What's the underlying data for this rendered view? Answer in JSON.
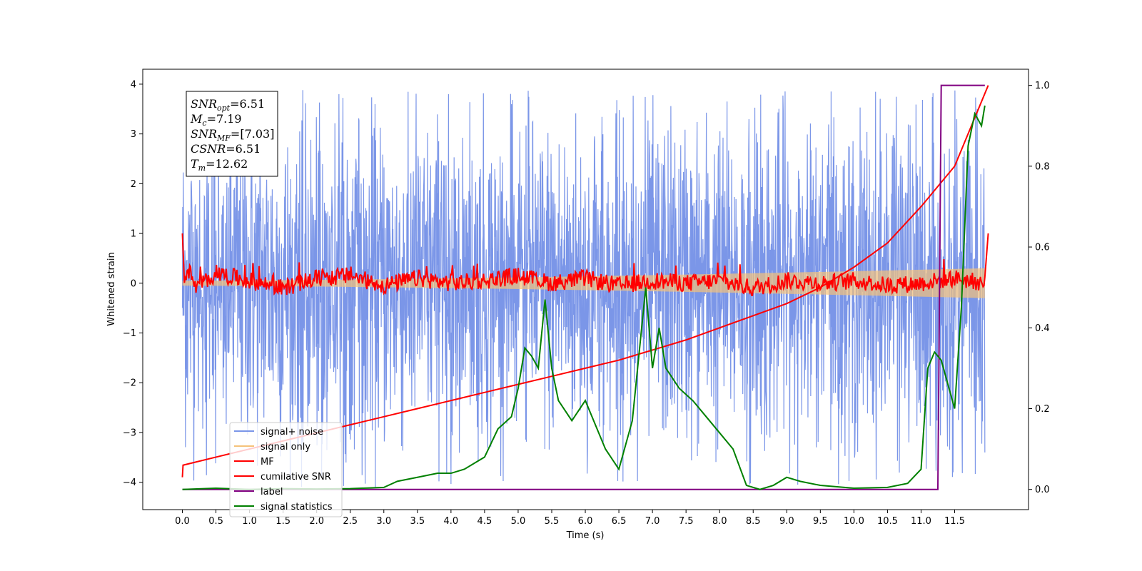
{
  "chart_data": {
    "type": "line",
    "xlabel": "Time (s)",
    "ylabel": "Whitened strain",
    "xlim": [
      -0.59,
      12.6
    ],
    "ylim": [
      -4.55,
      4.3
    ],
    "ylim_right": [
      -0.05,
      1.04
    ],
    "grid": false,
    "legend_position": "lower-left",
    "x_ticks": [
      "0.0",
      "0.5",
      "1.0",
      "1.5",
      "2.0",
      "2.5",
      "3.0",
      "3.5",
      "4.0",
      "4.5",
      "5.0",
      "5.5",
      "6.0",
      "6.5",
      "7.0",
      "7.5",
      "8.0",
      "8.5",
      "9.0",
      "9.5",
      "10.0",
      "10.5",
      "11.0",
      "11.5"
    ],
    "y_ticks": [
      "4",
      "3",
      "2",
      "1",
      "0",
      "−1",
      "−2",
      "−3",
      "−4"
    ],
    "y_ticks_right": [
      "1.0",
      "0.8",
      "0.6",
      "0.4",
      "0.2",
      "0.0"
    ],
    "annotation": {
      "lines": [
        {
          "sym": "SNR",
          "sub": "opt",
          "val": "=6.51"
        },
        {
          "sym": "M",
          "sub": "c",
          "val": "=7.19"
        },
        {
          "sym": "SNR",
          "sub": "MF",
          "val": "=[7.03]"
        },
        {
          "sym": "CSNR",
          "sub": "",
          "val": "=6.51"
        },
        {
          "sym": "T",
          "sub": "m",
          "val": "=12.62"
        }
      ]
    },
    "series": [
      {
        "name": "signal+ noise",
        "color": "#7b96e8",
        "axis": "left",
        "noise_amplitude": 1.6,
        "peak_range": [
          -4.1,
          3.9
        ]
      },
      {
        "name": "signal only",
        "color": "#f5c27a",
        "axis": "left",
        "envelope_start": 0.05,
        "envelope_end": 0.3
      },
      {
        "name": "MF",
        "color": "#ff0000",
        "axis": "left",
        "x": [
          0.0,
          0.03,
          0.1,
          0.2,
          0.5,
          1.0,
          1.5,
          2.0,
          2.5,
          3.0,
          3.5,
          4.0,
          4.5,
          5.0,
          5.5,
          6.0,
          6.5,
          7.0,
          7.5,
          8.0,
          8.5,
          9.0,
          9.5,
          10.0,
          10.5,
          11.0,
          11.5,
          11.95,
          12.0
        ],
        "y": [
          1.0,
          0.1,
          0.25,
          -0.1,
          0.2,
          0.05,
          -0.1,
          0.1,
          0.15,
          -0.05,
          0.1,
          0.0,
          0.05,
          0.15,
          0.0,
          0.1,
          -0.05,
          0.05,
          0.0,
          0.05,
          -0.1,
          0.05,
          0.0,
          0.05,
          -0.05,
          0.0,
          0.1,
          0.0,
          1.0
        ]
      },
      {
        "name": "cumilative SNR",
        "color": "#ff0000",
        "axis": "right",
        "x": [
          0.0,
          0.01,
          0.5,
          1.0,
          1.5,
          2.0,
          2.5,
          3.0,
          3.5,
          4.0,
          4.5,
          5.0,
          5.5,
          6.0,
          6.5,
          7.0,
          7.5,
          8.0,
          8.5,
          9.0,
          9.5,
          10.0,
          10.5,
          11.0,
          11.5,
          12.0
        ],
        "y": [
          0.03,
          0.06,
          0.08,
          0.1,
          0.12,
          0.14,
          0.16,
          0.18,
          0.2,
          0.22,
          0.24,
          0.26,
          0.28,
          0.3,
          0.32,
          0.345,
          0.37,
          0.4,
          0.43,
          0.46,
          0.5,
          0.55,
          0.61,
          0.7,
          0.8,
          1.0
        ]
      },
      {
        "name": "label",
        "color": "#800080",
        "axis": "right",
        "x": [
          0.0,
          11.25,
          11.3,
          11.95
        ],
        "y": [
          0.0,
          0.0,
          1.0,
          1.0
        ]
      },
      {
        "name": "signal statistics",
        "color": "#008000",
        "axis": "right",
        "x": [
          0.0,
          0.5,
          1.0,
          1.5,
          2.0,
          2.5,
          3.0,
          3.2,
          3.5,
          3.8,
          4.0,
          4.2,
          4.5,
          4.7,
          4.9,
          5.0,
          5.1,
          5.2,
          5.3,
          5.4,
          5.5,
          5.6,
          5.8,
          6.0,
          6.2,
          6.3,
          6.5,
          6.7,
          6.9,
          7.0,
          7.1,
          7.2,
          7.4,
          7.6,
          7.8,
          8.0,
          8.2,
          8.4,
          8.6,
          8.8,
          9.0,
          9.2,
          9.5,
          10.0,
          10.5,
          10.8,
          11.0,
          11.1,
          11.2,
          11.3,
          11.5,
          11.6,
          11.7,
          11.8,
          11.9,
          11.95
        ],
        "y": [
          0.0,
          0.003,
          0.0,
          0.002,
          0.001,
          0.002,
          0.005,
          0.02,
          0.03,
          0.04,
          0.04,
          0.05,
          0.08,
          0.15,
          0.18,
          0.25,
          0.35,
          0.33,
          0.3,
          0.47,
          0.3,
          0.22,
          0.17,
          0.22,
          0.14,
          0.1,
          0.05,
          0.17,
          0.5,
          0.3,
          0.4,
          0.3,
          0.25,
          0.22,
          0.18,
          0.14,
          0.1,
          0.01,
          0.0,
          0.01,
          0.03,
          0.02,
          0.01,
          0.003,
          0.005,
          0.015,
          0.05,
          0.3,
          0.34,
          0.32,
          0.2,
          0.45,
          0.85,
          0.93,
          0.9,
          0.95
        ]
      }
    ]
  }
}
